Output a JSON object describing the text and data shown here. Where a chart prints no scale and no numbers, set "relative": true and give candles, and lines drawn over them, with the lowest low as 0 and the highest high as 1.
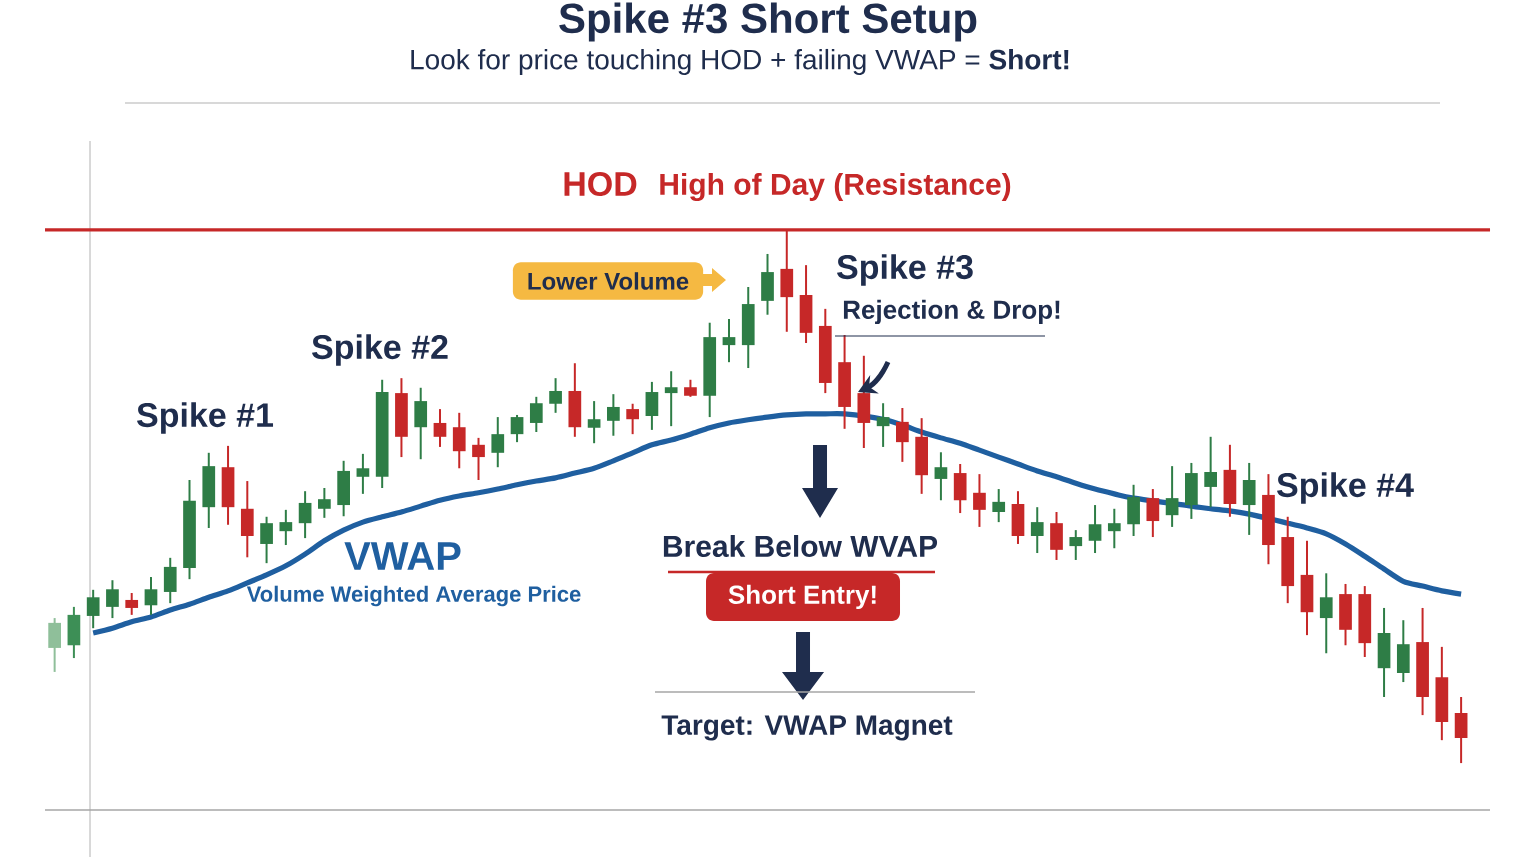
{
  "chart_data": {
    "type": "candlestick",
    "title": "Spike #3 Short Setup",
    "subtitle": "Look for price touching HOD + failing VWAP = **Short!**",
    "relative": true,
    "categories": [
      null,
      null,
      null,
      null,
      null,
      null,
      null,
      null,
      null,
      null,
      null,
      null,
      null,
      null,
      null,
      null,
      null,
      null,
      null,
      null,
      null,
      null,
      null,
      null,
      null,
      null,
      null,
      null,
      null,
      null,
      null,
      null,
      null,
      null,
      null,
      null,
      null,
      null,
      null,
      null,
      null,
      null,
      null,
      null,
      null,
      null,
      null,
      null,
      null,
      null,
      null,
      null,
      null,
      null,
      null,
      null,
      null,
      null,
      null,
      null,
      null,
      null,
      null,
      null,
      null,
      null,
      null,
      null,
      null,
      null,
      null,
      null,
      null,
      null
    ],
    "ohlc": [
      [
        0.216,
        0.272,
        0.171,
        0.263
      ],
      [
        0.221,
        0.293,
        0.197,
        0.278
      ],
      [
        0.276,
        0.325,
        0.253,
        0.311
      ],
      [
        0.293,
        0.343,
        0.272,
        0.326
      ],
      [
        0.306,
        0.319,
        0.278,
        0.291
      ],
      [
        0.296,
        0.349,
        0.278,
        0.326
      ],
      [
        0.321,
        0.385,
        0.3,
        0.368
      ],
      [
        0.366,
        0.531,
        0.345,
        0.492
      ],
      [
        0.48,
        0.582,
        0.441,
        0.557
      ],
      [
        0.555,
        0.595,
        0.447,
        0.48
      ],
      [
        0.477,
        0.529,
        0.386,
        0.426
      ],
      [
        0.411,
        0.462,
        0.375,
        0.45
      ],
      [
        0.435,
        0.475,
        0.409,
        0.452
      ],
      [
        0.45,
        0.51,
        0.422,
        0.488
      ],
      [
        0.477,
        0.516,
        0.46,
        0.495
      ],
      [
        0.484,
        0.567,
        0.463,
        0.548
      ],
      [
        0.537,
        0.58,
        0.505,
        0.553
      ],
      [
        0.537,
        0.719,
        0.516,
        0.696
      ],
      [
        0.694,
        0.722,
        0.574,
        0.612
      ],
      [
        0.63,
        0.704,
        0.57,
        0.679
      ],
      [
        0.638,
        0.664,
        0.593,
        0.612
      ],
      [
        0.63,
        0.657,
        0.553,
        0.585
      ],
      [
        0.597,
        0.61,
        0.531,
        0.574
      ],
      [
        0.582,
        0.649,
        0.555,
        0.617
      ],
      [
        0.617,
        0.653,
        0.602,
        0.649
      ],
      [
        0.638,
        0.687,
        0.621,
        0.675
      ],
      [
        0.674,
        0.722,
        0.657,
        0.698
      ],
      [
        0.698,
        0.75,
        0.612,
        0.63
      ],
      [
        0.629,
        0.679,
        0.6,
        0.645
      ],
      [
        0.642,
        0.692,
        0.614,
        0.668
      ],
      [
        0.664,
        0.674,
        0.617,
        0.645
      ],
      [
        0.651,
        0.715,
        0.625,
        0.696
      ],
      [
        0.694,
        0.735,
        0.632,
        0.705
      ],
      [
        0.705,
        0.719,
        0.687,
        0.689
      ],
      [
        0.689,
        0.826,
        0.649,
        0.799
      ],
      [
        0.784,
        0.833,
        0.752,
        0.799
      ],
      [
        0.784,
        0.893,
        0.741,
        0.861
      ],
      [
        0.867,
        0.955,
        0.841,
        0.921
      ],
      [
        0.927,
        1,
        0.809,
        0.874
      ],
      [
        0.878,
        0.934,
        0.788,
        0.807
      ],
      [
        0.82,
        0.852,
        0.694,
        0.713
      ],
      [
        0.752,
        0.803,
        0.627,
        0.668
      ],
      [
        0.694,
        0.764,
        0.591,
        0.638
      ],
      [
        0.632,
        0.675,
        0.593,
        0.649
      ],
      [
        0.64,
        0.666,
        0.565,
        0.602
      ],
      [
        0.612,
        0.647,
        0.505,
        0.54
      ],
      [
        0.533,
        0.583,
        0.493,
        0.555
      ],
      [
        0.544,
        0.561,
        0.469,
        0.493
      ],
      [
        0.507,
        0.542,
        0.443,
        0.475
      ],
      [
        0.471,
        0.514,
        0.452,
        0.49
      ],
      [
        0.486,
        0.51,
        0.411,
        0.426
      ],
      [
        0.426,
        0.48,
        0.394,
        0.452
      ],
      [
        0.45,
        0.471,
        0.381,
        0.4
      ],
      [
        0.407,
        0.437,
        0.381,
        0.424
      ],
      [
        0.417,
        0.484,
        0.394,
        0.448
      ],
      [
        0.435,
        0.477,
        0.403,
        0.45
      ],
      [
        0.448,
        0.522,
        0.426,
        0.499
      ],
      [
        0.497,
        0.514,
        0.424,
        0.454
      ],
      [
        0.465,
        0.557,
        0.443,
        0.497
      ],
      [
        0.484,
        0.563,
        0.458,
        0.544
      ],
      [
        0.518,
        0.612,
        0.48,
        0.546
      ],
      [
        0.55,
        0.597,
        0.462,
        0.486
      ],
      [
        0.484,
        0.563,
        0.428,
        0.531
      ],
      [
        0.503,
        0.542,
        0.373,
        0.409
      ],
      [
        0.424,
        0.462,
        0.3,
        0.332
      ],
      [
        0.353,
        0.417,
        0.24,
        0.283
      ],
      [
        0.272,
        0.356,
        0.206,
        0.311
      ],
      [
        0.317,
        0.336,
        0.221,
        0.25
      ],
      [
        0.317,
        0.332,
        0.199,
        0.225
      ],
      [
        0.178,
        0.291,
        0.124,
        0.244
      ],
      [
        0.169,
        0.268,
        0.152,
        0.223
      ],
      [
        0.227,
        0.291,
        0.09,
        0.124
      ],
      [
        0.161,
        0.218,
        0.043,
        0.077
      ],
      [
        0.094,
        0.124,
        0,
        0.047
      ]
    ],
    "colors": [
      "#8fbf9a",
      "#3d8f56",
      "#2e7d46",
      "#2e7d46",
      "#c62828",
      "#2e7d46",
      "#2e7d46",
      "#2e7d46",
      "#2e7d46",
      "#c62828",
      "#c62828",
      "#2e7d46",
      "#2e7d46",
      "#2e7d46",
      "#2e7d46",
      "#2e7d46",
      "#2e7d46",
      "#2e7d46",
      "#c62828",
      "#2e7d46",
      "#c62828",
      "#c62828",
      "#c62828",
      "#2e7d46",
      "#2e7d46",
      "#2e7d46",
      "#2e7d46",
      "#c62828",
      "#2e7d46",
      "#2e7d46",
      "#c62828",
      "#2e7d46",
      "#2e7d46",
      "#c62828",
      "#2e7d46",
      "#2e7d46",
      "#2e7d46",
      "#2e7d46",
      "#c62828",
      "#c62828",
      "#c62828",
      "#c62828",
      "#c62828",
      "#2e7d46",
      "#c62828",
      "#c62828",
      "#2e7d46",
      "#c62828",
      "#c62828",
      "#2e7d46",
      "#c62828",
      "#2e7d46",
      "#c62828",
      "#2e7d46",
      "#2e7d46",
      "#2e7d46",
      "#2e7d46",
      "#c62828",
      "#2e7d46",
      "#2e7d46",
      "#2e7d46",
      "#c62828",
      "#2e7d46",
      "#c62828",
      "#c62828",
      "#c62828",
      "#2e7d46",
      "#c62828",
      "#c62828",
      "#2e7d46",
      "#2e7d46",
      "#c62828",
      "#c62828",
      "#c62828"
    ],
    "series": [
      {
        "name": "VWAP",
        "type": "line",
        "color": "#1f5fa0",
        "values": [
          null,
          null,
          0.244,
          0.253,
          0.265,
          0.274,
          0.287,
          0.298,
          0.311,
          0.323,
          0.338,
          0.353,
          0.37,
          0.392,
          0.417,
          0.437,
          0.452,
          0.462,
          0.471,
          0.482,
          0.493,
          0.501,
          0.507,
          0.514,
          0.522,
          0.529,
          0.535,
          0.544,
          0.553,
          0.567,
          0.582,
          0.597,
          0.606,
          0.617,
          0.629,
          0.638,
          0.644,
          0.649,
          0.653,
          0.655,
          0.655,
          0.655,
          null,
          0.645,
          0.634,
          0.621,
          0.61,
          0.6,
          0.587,
          0.574,
          0.561,
          0.548,
          0.537,
          0.525,
          0.514,
          0.505,
          0.497,
          null,
          null,
          0.482,
          0.477,
          0.473,
          0.467,
          null,
          0.45,
          0.441,
          0.43,
          0.411,
          0.388,
          0.364,
          0.341,
          0.332,
          0.323,
          0.317
        ]
      }
    ],
    "ref_lines": [
      {
        "axis": "y",
        "value": 1,
        "label": "HOD",
        "color": "#c62828"
      }
    ],
    "annotations": [
      "Spike #1",
      "Spike #2",
      "Lower Volume",
      "Spike #3",
      "Rejection & Drop!",
      "Volume Weighted Average Price",
      "Break Below WVAP",
      "Short Entry!",
      "Target: VWAP Magnet",
      "Spike #4",
      "High of Day (Resistance)"
    ]
  }
}
